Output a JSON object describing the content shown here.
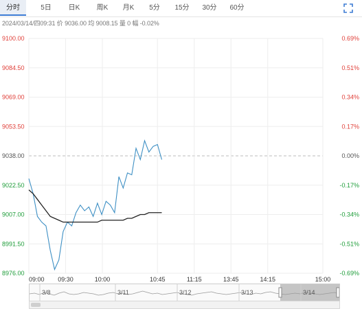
{
  "tabs": [
    {
      "label": "分时",
      "active": true
    },
    {
      "label": "5日",
      "active": false
    },
    {
      "label": "日K",
      "active": false
    },
    {
      "label": "周K",
      "active": false
    },
    {
      "label": "月K",
      "active": false
    },
    {
      "label": "5分",
      "active": false
    },
    {
      "label": "15分",
      "active": false
    },
    {
      "label": "30分",
      "active": false
    },
    {
      "label": "60分",
      "active": false
    }
  ],
  "expand_icon": "fullscreen-icon",
  "info": "2024/03/14/四09:31  价 9036.00  均 9008.15  量 0  幅 -0.02%",
  "colors": {
    "price_line": "#3d8fc4",
    "avg_line": "#222222",
    "up": "#e0403a",
    "down": "#1f9d3a",
    "flat": "#555555",
    "grid": "#eeeeee",
    "ref_line": "#bbbbbb",
    "tab_active_bg": "#e9eef5",
    "navigator_shade": "#999999"
  },
  "chart_data": {
    "type": "line",
    "x": [
      "09:00",
      "09:01",
      "09:02",
      "09:03",
      "09:04",
      "09:05",
      "09:06",
      "09:07",
      "09:08",
      "09:09",
      "09:10",
      "09:11",
      "09:12",
      "09:13",
      "09:14",
      "09:15",
      "09:16",
      "09:17",
      "09:18",
      "09:19",
      "09:20",
      "09:21",
      "09:22",
      "09:23",
      "09:24",
      "09:25",
      "09:26",
      "09:27",
      "09:28",
      "09:29",
      "09:30",
      "09:31"
    ],
    "series": [
      {
        "values": [
          9026,
          9018,
          9006,
          9003,
          9001,
          8988,
          8978,
          8983,
          8998,
          9003,
          9001,
          9008,
          9012,
          9009,
          9011,
          9006,
          9013,
          9007,
          9014,
          9012,
          9008,
          9027,
          9021,
          9029,
          9028,
          9042,
          9036,
          9046,
          9040,
          9043,
          9044,
          9036
        ]
      },
      {
        "values": [
          9020,
          9018,
          9015,
          9012,
          9009,
          9006,
          9005,
          9004,
          9003,
          9003,
          9003,
          9003,
          9003,
          9003,
          9003,
          9003,
          9003,
          9004,
          9004,
          9004,
          9004,
          9004,
          9004,
          9005,
          9005,
          9006,
          9007,
          9007,
          9008,
          9008,
          9008,
          9008
        ]
      }
    ],
    "reference": 9038.0,
    "ylim": [
      8976.0,
      9100.0
    ],
    "y_ticks": [
      "9100.00",
      "9084.50",
      "9069.00",
      "9053.50",
      "9038.00",
      "9022.50",
      "9007.00",
      "8991.50",
      "8976.00"
    ],
    "pct_ticks": [
      "0.69%",
      "0.51%",
      "0.34%",
      "0.17%",
      "0.00%",
      "-0.17%",
      "-0.34%",
      "-0.51%",
      "-0.69%"
    ],
    "x_ticks": [
      "09:00",
      "09:30",
      "10:00",
      "10:45",
      "11:15",
      "13:45",
      "14:15",
      "15:00"
    ],
    "x_tick_minutes": [
      0,
      30,
      60,
      105,
      135,
      165,
      195,
      240
    ],
    "x_span_minutes": 240
  },
  "navigator": {
    "dates": [
      "3/8",
      "3/11",
      "3/12",
      "3/13",
      "3/14"
    ],
    "profile": [
      0.5,
      0.55,
      0.45,
      0.6,
      0.5,
      0.4,
      0.55,
      0.65,
      0.5,
      0.45,
      0.5,
      0.6,
      0.55,
      0.5,
      0.4,
      0.45,
      0.55,
      0.6,
      0.5,
      0.55,
      0.45,
      0.5,
      0.6,
      0.7,
      0.6,
      0.5,
      0.55,
      0.45,
      0.5,
      0.55,
      0.6,
      0.5,
      0.45,
      0.4,
      0.5,
      0.55,
      0.6,
      0.65,
      0.55,
      0.5,
      0.45,
      0.5,
      0.55,
      0.6,
      0.5,
      0.45,
      0.55,
      0.5,
      0.6,
      0.65,
      0.55,
      0.5,
      0.45,
      0.5,
      0.55,
      0.5,
      0.6,
      0.55,
      0.5,
      0.45,
      0.5,
      0.55,
      0.6,
      0.5
    ]
  }
}
